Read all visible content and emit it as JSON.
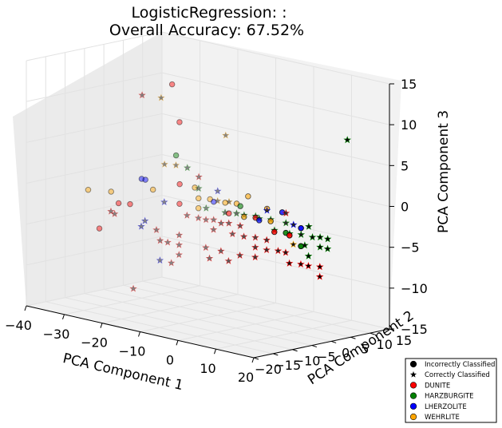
{
  "chart_data": {
    "type": "scatter",
    "title_line1": "LogisticRegression: :",
    "title_line2": "Overall Accuracy: 67.52%",
    "xlabel": "PCA Component 1",
    "ylabel": "PCA Component 2",
    "zlabel": "PCA Component 3",
    "xlim": [
      -40,
      20
    ],
    "ylim": [
      -20,
      15
    ],
    "zlim": [
      -15,
      15
    ],
    "xticks": [
      "−40",
      "−30",
      "−20",
      "−10",
      "0",
      "10",
      "20"
    ],
    "yticks": [
      "−20",
      "−15",
      "−10",
      "−5",
      "0",
      "5",
      "10",
      "15"
    ],
    "zticks": [
      "−15",
      "−10",
      "−5",
      "0",
      "5",
      "10",
      "15"
    ],
    "grid": true,
    "legend_position": "bottom-right",
    "legend": [
      {
        "label": "Incorrectly Classified",
        "marker": "circle",
        "color": "#000000"
      },
      {
        "label": "Correctly Classified",
        "marker": "star",
        "color": "#000000"
      },
      {
        "label": "DUNITE",
        "marker": "circle",
        "color": "#ff0000"
      },
      {
        "label": "HARZBURGITE",
        "marker": "circle",
        "color": "#008000"
      },
      {
        "label": "LHERZOLITE",
        "marker": "circle",
        "color": "#0000ff"
      },
      {
        "label": "WEHRLITE",
        "marker": "circle",
        "color": "#ffa500"
      }
    ],
    "class_colors": {
      "DUNITE": "#ff0000",
      "HARZBURGITE": "#008000",
      "LHERZOLITE": "#0000ff",
      "WEHRLITE": "#ffa500"
    },
    "points": [
      {
        "x": -22,
        "y": 0,
        "z": 12,
        "cls": "DUNITE",
        "ok": false
      },
      {
        "x": -18,
        "y": -2,
        "z": 8,
        "cls": "DUNITE",
        "ok": false
      },
      {
        "x": -38,
        "y": -6,
        "z": -2,
        "cls": "WEHRLITE",
        "ok": false
      },
      {
        "x": -34,
        "y": -4,
        "z": -2,
        "cls": "WEHRLITE",
        "ok": false
      },
      {
        "x": -31,
        "y": -5,
        "z": -3,
        "cls": "DUNITE",
        "ok": false
      },
      {
        "x": -29,
        "y": -4,
        "z": -3,
        "cls": "DUNITE",
        "ok": false
      },
      {
        "x": -33,
        "y": -8,
        "z": -6,
        "cls": "DUNITE",
        "ok": false
      },
      {
        "x": -28,
        "y": -2,
        "z": 0,
        "cls": "LHERZOLITE",
        "ok": false
      },
      {
        "x": -27,
        "y": -2,
        "z": 0,
        "cls": "LHERZOLITE",
        "ok": false
      },
      {
        "x": -25,
        "y": -2,
        "z": -1,
        "cls": "WEHRLITE",
        "ok": false
      },
      {
        "x": -23,
        "y": 2,
        "z": 3,
        "cls": "HARZBURGITE",
        "ok": false
      },
      {
        "x": -20,
        "y": 0,
        "z": 0,
        "cls": "DUNITE",
        "ok": false
      },
      {
        "x": -18,
        "y": -2,
        "z": -2,
        "cls": "DUNITE",
        "ok": false
      },
      {
        "x": -16,
        "y": 0,
        "z": 0,
        "cls": "WEHRLITE",
        "ok": false
      },
      {
        "x": -14,
        "y": -1,
        "z": -1,
        "cls": "WEHRLITE",
        "ok": false
      },
      {
        "x": -13,
        "y": -2,
        "z": -2,
        "cls": "WEHRLITE",
        "ok": false
      },
      {
        "x": -12,
        "y": 0,
        "z": -1,
        "cls": "WEHRLITE",
        "ok": false
      },
      {
        "x": -10,
        "y": -1,
        "z": -1,
        "cls": "LHERZOLITE",
        "ok": false
      },
      {
        "x": -8,
        "y": 0,
        "z": -1,
        "cls": "WEHRLITE",
        "ok": false
      },
      {
        "x": -6,
        "y": -1,
        "z": -2,
        "cls": "DUNITE",
        "ok": false
      },
      {
        "x": -4,
        "y": 0,
        "z": -1,
        "cls": "HARZBURGITE",
        "ok": false
      },
      {
        "x": -2,
        "y": -1,
        "z": -2,
        "cls": "WEHRLITE",
        "ok": false
      },
      {
        "x": 0,
        "y": 0,
        "z": -2,
        "cls": "DUNITE",
        "ok": false
      },
      {
        "x": 2,
        "y": -1,
        "z": -2,
        "cls": "LHERZOLITE",
        "ok": false
      },
      {
        "x": 4,
        "y": 0,
        "z": -2,
        "cls": "WEHRLITE",
        "ok": false
      },
      {
        "x": 6,
        "y": -1,
        "z": -3,
        "cls": "DUNITE",
        "ok": false
      },
      {
        "x": 8,
        "y": 0,
        "z": -3,
        "cls": "HARZBURGITE",
        "ok": false
      },
      {
        "x": 10,
        "y": -1,
        "z": -3,
        "cls": "DUNITE",
        "ok": false
      },
      {
        "x": 12,
        "y": 0,
        "z": -2,
        "cls": "LHERZOLITE",
        "ok": false
      },
      {
        "x": 13,
        "y": -1,
        "z": -4,
        "cls": "HARZBURGITE",
        "ok": false
      },
      {
        "x": -6,
        "y": 1,
        "z": -1,
        "cls": "WEHRLITE",
        "ok": false
      },
      {
        "x": -4,
        "y": 2,
        "z": 0,
        "cls": "WEHRLITE",
        "ok": false
      },
      {
        "x": 1,
        "y": 2,
        "z": -1,
        "cls": "WEHRLITE",
        "ok": false
      },
      {
        "x": 5,
        "y": 2,
        "z": -1,
        "cls": "LHERZOLITE",
        "ok": false
      },
      {
        "x": -34,
        "y": 4,
        "z": 9,
        "cls": "DUNITE",
        "ok": true
      },
      {
        "x": -30,
        "y": 5,
        "z": 9,
        "cls": "WEHRLITE",
        "ok": true
      },
      {
        "x": -14,
        "y": 6,
        "z": 6,
        "cls": "WEHRLITE",
        "ok": true
      },
      {
        "x": 14,
        "y": 10,
        "z": 8,
        "cls": "HARZBURGITE",
        "ok": true
      },
      {
        "x": -32,
        "y": -6,
        "z": -4,
        "cls": "DUNITE",
        "ok": true
      },
      {
        "x": -30,
        "y": -7,
        "z": -4,
        "cls": "DUNITE",
        "ok": true
      },
      {
        "x": -24,
        "y": 0,
        "z": 2,
        "cls": "WEHRLITE",
        "ok": true
      },
      {
        "x": -22,
        "y": 1,
        "z": 2,
        "cls": "WEHRLITE",
        "ok": true
      },
      {
        "x": -19,
        "y": 1,
        "z": 2,
        "cls": "HARZBURGITE",
        "ok": true
      },
      {
        "x": -17,
        "y": 2,
        "z": 1,
        "cls": "DUNITE",
        "ok": true
      },
      {
        "x": -21,
        "y": -3,
        "z": -2,
        "cls": "LHERZOLITE",
        "ok": true
      },
      {
        "x": -24,
        "y": -6,
        "z": -5,
        "cls": "LHERZOLITE",
        "ok": true
      },
      {
        "x": -22,
        "y": -7,
        "z": -4,
        "cls": "LHERZOLITE",
        "ok": true
      },
      {
        "x": -20,
        "y": -6,
        "z": -5,
        "cls": "DUNITE",
        "ok": true
      },
      {
        "x": -18,
        "y": -7,
        "z": -6,
        "cls": "DUNITE",
        "ok": true
      },
      {
        "x": -16,
        "y": -7,
        "z": -6,
        "cls": "DUNITE",
        "ok": true
      },
      {
        "x": -14,
        "y": -6,
        "z": -5,
        "cls": "DUNITE",
        "ok": true
      },
      {
        "x": -13,
        "y": -7,
        "z": -6,
        "cls": "DUNITE",
        "ok": true
      },
      {
        "x": -22,
        "y": -10,
        "z": -12,
        "cls": "DUNITE",
        "ok": true
      },
      {
        "x": -16,
        "y": -9,
        "z": -8,
        "cls": "LHERZOLITE",
        "ok": true
      },
      {
        "x": -13,
        "y": -9,
        "z": -8,
        "cls": "DUNITE",
        "ok": true
      },
      {
        "x": -12,
        "y": -8,
        "z": -7,
        "cls": "DUNITE",
        "ok": true
      },
      {
        "x": -15,
        "y": -3,
        "z": -3,
        "cls": "DUNITE",
        "ok": true
      },
      {
        "x": -12,
        "y": -3,
        "z": -3,
        "cls": "DUNITE",
        "ok": true
      },
      {
        "x": -10,
        "y": -3,
        "z": -3,
        "cls": "DUNITE",
        "ok": true
      },
      {
        "x": -9,
        "y": -2,
        "z": -3,
        "cls": "DUNITE",
        "ok": true
      },
      {
        "x": -8,
        "y": -3,
        "z": -4,
        "cls": "DUNITE",
        "ok": true
      },
      {
        "x": -6,
        "y": -3,
        "z": -3,
        "cls": "DUNITE",
        "ok": true
      },
      {
        "x": -5,
        "y": -2,
        "z": -3,
        "cls": "DUNITE",
        "ok": true
      },
      {
        "x": -3,
        "y": -3,
        "z": -4,
        "cls": "DUNITE",
        "ok": true
      },
      {
        "x": -2,
        "y": -2,
        "z": -3,
        "cls": "DUNITE",
        "ok": true
      },
      {
        "x": 0,
        "y": -3,
        "z": -4,
        "cls": "DUNITE",
        "ok": true
      },
      {
        "x": 2,
        "y": -2,
        "z": -4,
        "cls": "DUNITE",
        "ok": true
      },
      {
        "x": 3,
        "y": -3,
        "z": -5,
        "cls": "DUNITE",
        "ok": true
      },
      {
        "x": 5,
        "y": -2,
        "z": -4,
        "cls": "DUNITE",
        "ok": true
      },
      {
        "x": 6,
        "y": -3,
        "z": -5,
        "cls": "DUNITE",
        "ok": true
      },
      {
        "x": 8,
        "y": -2,
        "z": -5,
        "cls": "DUNITE",
        "ok": true
      },
      {
        "x": -7,
        "y": -1,
        "z": -2,
        "cls": "HARZBURGITE",
        "ok": true
      },
      {
        "x": -5,
        "y": 0,
        "z": -2,
        "cls": "HARZBURGITE",
        "ok": true
      },
      {
        "x": -3,
        "y": 0,
        "z": -2,
        "cls": "HARZBURGITE",
        "ok": true
      },
      {
        "x": -1,
        "y": 1,
        "z": -2,
        "cls": "HARZBURGITE",
        "ok": true
      },
      {
        "x": 1,
        "y": 0,
        "z": -2,
        "cls": "HARZBURGITE",
        "ok": true
      },
      {
        "x": 3,
        "y": 1,
        "z": -2,
        "cls": "HARZBURGITE",
        "ok": true
      },
      {
        "x": 5,
        "y": 0,
        "z": -3,
        "cls": "HARZBURGITE",
        "ok": true
      },
      {
        "x": 7,
        "y": 1,
        "z": -2,
        "cls": "HARZBURGITE",
        "ok": true
      },
      {
        "x": 9,
        "y": 0,
        "z": -3,
        "cls": "HARZBURGITE",
        "ok": true
      },
      {
        "x": 11,
        "y": 1,
        "z": -3,
        "cls": "HARZBURGITE",
        "ok": true
      },
      {
        "x": 12,
        "y": 2,
        "z": -2,
        "cls": "HARZBURGITE",
        "ok": true
      },
      {
        "x": 14,
        "y": 1,
        "z": -3,
        "cls": "HARZBURGITE",
        "ok": true
      },
      {
        "x": 15,
        "y": 2,
        "z": -3,
        "cls": "HARZBURGITE",
        "ok": true
      },
      {
        "x": 16,
        "y": 1,
        "z": -4,
        "cls": "HARZBURGITE",
        "ok": true
      },
      {
        "x": 17,
        "y": 2,
        "z": -3,
        "cls": "HARZBURGITE",
        "ok": true
      },
      {
        "x": 18,
        "y": 1,
        "z": -4,
        "cls": "HARZBURGITE",
        "ok": true
      },
      {
        "x": 13,
        "y": 0,
        "z": -4,
        "cls": "HARZBURGITE",
        "ok": true
      },
      {
        "x": 15,
        "y": -1,
        "z": -5,
        "cls": "HARZBURGITE",
        "ok": true
      },
      {
        "x": 10,
        "y": -2,
        "z": -5,
        "cls": "DUNITE",
        "ok": true
      },
      {
        "x": 12,
        "y": -3,
        "z": -6,
        "cls": "DUNITE",
        "ok": true
      },
      {
        "x": 14,
        "y": -2,
        "z": -6,
        "cls": "DUNITE",
        "ok": true
      },
      {
        "x": 16,
        "y": -2,
        "z": -6,
        "cls": "DUNITE",
        "ok": true
      },
      {
        "x": 18,
        "y": -1,
        "z": -6,
        "cls": "DUNITE",
        "ok": true
      },
      {
        "x": 19,
        "y": -2,
        "z": -7,
        "cls": "DUNITE",
        "ok": true
      },
      {
        "x": -8,
        "y": -5,
        "z": -6,
        "cls": "DUNITE",
        "ok": true
      },
      {
        "x": -6,
        "y": -6,
        "z": -7,
        "cls": "DUNITE",
        "ok": true
      },
      {
        "x": -4,
        "y": -5,
        "z": -6,
        "cls": "DUNITE",
        "ok": true
      },
      {
        "x": -2,
        "y": -5,
        "z": -7,
        "cls": "DUNITE",
        "ok": true
      },
      {
        "x": 1,
        "y": -5,
        "z": -6,
        "cls": "DUNITE",
        "ok": true
      },
      {
        "x": 4,
        "y": -4,
        "z": -6,
        "cls": "DUNITE",
        "ok": true
      },
      {
        "x": -10,
        "y": 0,
        "z": -1,
        "cls": "WEHRLITE",
        "ok": true
      },
      {
        "x": -8,
        "y": 1,
        "z": -1,
        "cls": "WEHRLITE",
        "ok": true
      },
      {
        "x": -11,
        "y": 1,
        "z": 0,
        "cls": "LHERZOLITE",
        "ok": true
      },
      {
        "x": 2,
        "y": 1,
        "z": -1,
        "cls": "LHERZOLITE",
        "ok": true
      },
      {
        "x": 9,
        "y": 1,
        "z": -2,
        "cls": "LHERZOLITE",
        "ok": true
      },
      {
        "x": -15,
        "y": 0,
        "z": 0,
        "cls": "HARZBURGITE",
        "ok": true
      },
      {
        "x": -12,
        "y": -1,
        "z": -2,
        "cls": "HARZBURGITE",
        "ok": true
      },
      {
        "x": 6,
        "y": 2,
        "z": -1,
        "cls": "DUNITE",
        "ok": true
      },
      {
        "x": 11,
        "y": -1,
        "z": -4,
        "cls": "WEHRLITE",
        "ok": true
      }
    ]
  }
}
